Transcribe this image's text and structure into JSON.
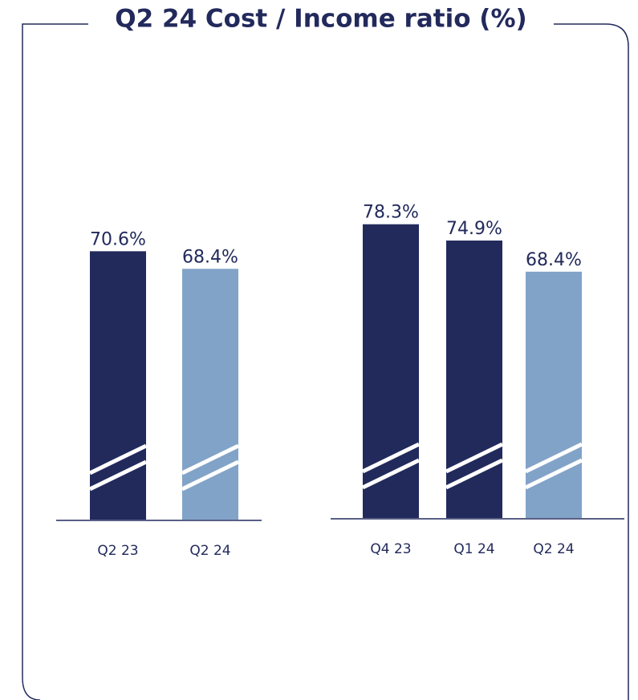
{
  "title": "Q2 24 Cost / Income ratio (%)",
  "chart_data": [
    {
      "type": "bar",
      "categories": [
        "Q2 23",
        "Q2 24"
      ],
      "values": [
        70.6,
        68.4
      ],
      "value_labels": [
        "70.6%",
        "68.4%"
      ],
      "colors": [
        "#222a5c",
        "#82a3c8"
      ],
      "ylim": [
        37,
        87
      ]
    },
    {
      "type": "bar",
      "categories": [
        "Q4 23",
        "Q1 24",
        "Q2 24"
      ],
      "values": [
        78.3,
        74.9,
        68.4
      ],
      "value_labels": [
        "78.3%",
        "74.9%",
        "68.4%"
      ],
      "colors": [
        "#222a5c",
        "#222a5c",
        "#82a3c8"
      ],
      "ylim": [
        17,
        100
      ]
    }
  ]
}
